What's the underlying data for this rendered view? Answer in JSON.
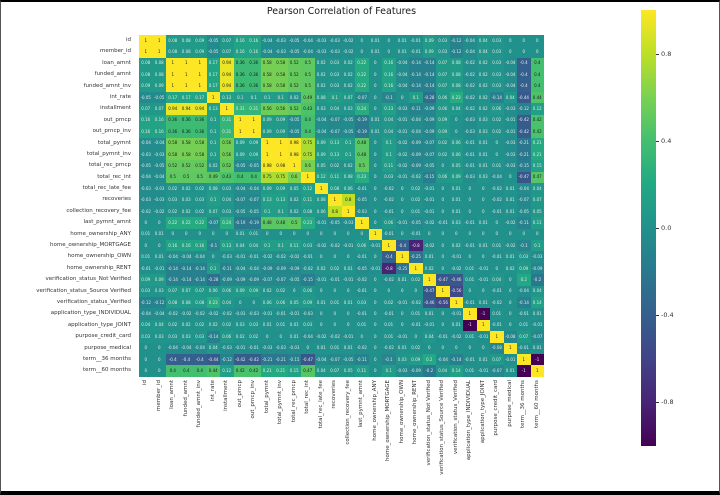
{
  "chart_data": {
    "type": "heatmap",
    "title": "Pearson Correlation of Features",
    "colormap": "viridis",
    "vmin": -1,
    "vmax": 1,
    "legend_position": "right-colorbar",
    "grid": false,
    "colorbar_ticks": [
      {
        "value": 0.8,
        "label": "0.8"
      },
      {
        "value": 0.4,
        "label": "0.4"
      },
      {
        "value": 0.0,
        "label": "0.0"
      },
      {
        "value": -0.4,
        "label": "-0.4"
      },
      {
        "value": -0.8,
        "label": "-0.8"
      }
    ],
    "labels": [
      "id",
      "member_id",
      "loan_amnt",
      "funded_amnt",
      "funded_amnt_inv",
      "int_rate",
      "installment",
      "out_prncp",
      "out_prncp_inv",
      "total_pymnt",
      "total_pymnt_inv",
      "total_rec_prncp",
      "total_rec_int",
      "total_rec_late_fee",
      "recoveries",
      "collection_recovery_fee",
      "last_pymnt_amnt",
      "home_ownership_ANY",
      "home_ownership_MORTGAGE",
      "home_ownership_OWN",
      "home_ownership_RENT",
      "verification_status_Not Verified",
      "verification_status_Source Verified",
      "verification_status_Verified",
      "application_type_INDIVIDUAL",
      "application_type_JOINT",
      "purpose_credit_card",
      "purpose_medical",
      "term__36 months",
      "term__60 months"
    ],
    "matrix": [
      [
        1.0,
        1.0,
        0.08,
        0.08,
        0.09,
        -0.05,
        0.07,
        0.16,
        0.16,
        -0.04,
        -0.03,
        -0.05,
        -0.04,
        -0.03,
        -0.03,
        -0.02,
        0.0,
        0.01,
        0.0,
        0.01,
        -0.01,
        0.09,
        0.03,
        -0.12,
        -0.04,
        0.04,
        0.03,
        0.0,
        0.0,
        0.0
      ],
      [
        1.0,
        1.0,
        0.08,
        0.08,
        0.09,
        -0.05,
        0.07,
        0.16,
        0.16,
        -0.04,
        -0.03,
        -0.05,
        -0.04,
        -0.03,
        -0.03,
        -0.02,
        0.0,
        0.01,
        0.0,
        0.01,
        -0.01,
        0.09,
        0.03,
        -0.12,
        -0.04,
        0.04,
        0.03,
        0.0,
        0.0,
        0.0
      ],
      [
        0.08,
        0.08,
        1.0,
        1.0,
        1.0,
        0.17,
        0.94,
        0.36,
        0.36,
        0.58,
        0.58,
        0.52,
        0.5,
        0.02,
        0.03,
        0.02,
        0.22,
        0.0,
        0.16,
        -0.04,
        -0.14,
        -0.14,
        0.07,
        0.08,
        -0.02,
        0.02,
        0.03,
        -0.04,
        -0.4,
        0.4
      ],
      [
        0.08,
        0.08,
        1.0,
        1.0,
        1.0,
        0.17,
        0.94,
        0.36,
        0.36,
        0.58,
        0.58,
        0.52,
        0.5,
        0.02,
        0.03,
        0.02,
        0.22,
        0.0,
        0.16,
        -0.04,
        -0.14,
        -0.14,
        0.07,
        0.08,
        -0.02,
        0.02,
        0.03,
        -0.04,
        -0.4,
        0.4
      ],
      [
        0.09,
        0.09,
        1.0,
        1.0,
        1.0,
        0.17,
        0.94,
        0.36,
        0.36,
        0.58,
        0.58,
        0.52,
        0.5,
        0.02,
        0.03,
        0.02,
        0.22,
        0.0,
        0.16,
        -0.04,
        -0.14,
        -0.14,
        0.07,
        0.08,
        -0.02,
        0.02,
        0.03,
        -0.04,
        -0.4,
        0.4
      ],
      [
        -0.05,
        -0.05,
        0.17,
        0.17,
        0.17,
        1.0,
        0.13,
        0.1,
        0.1,
        0.1,
        0.1,
        0.02,
        0.49,
        0.08,
        0.1,
        0.07,
        -0.07,
        0.0,
        -0.1,
        0.0,
        0.1,
        -0.28,
        0.06,
        0.23,
        -0.02,
        0.02,
        -0.14,
        0.04,
        -0.44,
        0.44
      ],
      [
        0.07,
        0.07,
        0.94,
        0.94,
        0.94,
        0.13,
        1.0,
        0.31,
        0.31,
        0.56,
        0.56,
        0.52,
        0.43,
        0.03,
        0.04,
        0.03,
        0.24,
        0.0,
        0.13,
        -0.03,
        -0.11,
        -0.09,
        0.06,
        0.04,
        -0.02,
        0.02,
        0.06,
        -0.03,
        -0.12,
        0.12
      ],
      [
        0.16,
        0.16,
        0.36,
        0.36,
        0.36,
        0.1,
        0.31,
        1.0,
        1.0,
        0.09,
        0.09,
        -0.05,
        0.4,
        -0.04,
        -0.07,
        -0.05,
        -0.19,
        0.01,
        0.04,
        -0.01,
        -0.04,
        -0.09,
        0.09,
        0.0,
        -0.03,
        0.03,
        0.02,
        -0.01,
        -0.42,
        0.42
      ],
      [
        0.16,
        0.16,
        0.36,
        0.36,
        0.36,
        0.1,
        0.31,
        1.0,
        1.0,
        0.09,
        0.09,
        -0.05,
        0.4,
        -0.04,
        -0.07,
        -0.05,
        -0.19,
        0.01,
        0.04,
        -0.01,
        -0.04,
        -0.09,
        0.09,
        0.0,
        -0.03,
        0.03,
        0.02,
        -0.01,
        -0.42,
        0.42
      ],
      [
        -0.04,
        -0.04,
        0.58,
        0.58,
        0.58,
        0.1,
        0.56,
        0.09,
        0.09,
        1.0,
        1.0,
        0.98,
        0.75,
        0.09,
        0.13,
        0.1,
        0.48,
        0.0,
        0.1,
        -0.02,
        -0.09,
        -0.07,
        0.02,
        0.06,
        -0.01,
        0.01,
        0.0,
        -0.03,
        -0.21,
        0.21
      ],
      [
        -0.03,
        -0.03,
        0.58,
        0.58,
        0.58,
        0.1,
        0.56,
        0.09,
        0.09,
        1.0,
        1.0,
        0.98,
        0.75,
        0.09,
        0.13,
        0.1,
        0.48,
        0.0,
        0.1,
        -0.02,
        -0.09,
        -0.07,
        0.02,
        0.06,
        -0.01,
        0.01,
        0.0,
        -0.03,
        -0.21,
        0.21
      ],
      [
        -0.05,
        -0.05,
        0.52,
        0.52,
        0.52,
        0.02,
        0.52,
        -0.05,
        -0.05,
        0.98,
        0.98,
        1.0,
        0.6,
        0.05,
        0.02,
        0.02,
        0.5,
        0.0,
        0.11,
        -0.02,
        -0.09,
        -0.05,
        0.0,
        0.05,
        -0.01,
        0.01,
        0.01,
        -0.03,
        -0.15,
        0.15
      ],
      [
        -0.04,
        -0.04,
        0.5,
        0.5,
        0.5,
        0.49,
        0.43,
        0.4,
        0.4,
        0.75,
        0.75,
        0.6,
        1.0,
        0.12,
        0.11,
        0.08,
        0.23,
        0.0,
        0.03,
        -0.01,
        -0.02,
        -0.15,
        0.06,
        0.09,
        -0.03,
        0.03,
        -0.04,
        0.0,
        -0.47,
        0.47
      ],
      [
        -0.03,
        -0.03,
        0.02,
        0.02,
        0.02,
        0.08,
        0.03,
        -0.04,
        -0.04,
        0.09,
        0.09,
        0.05,
        0.12,
        1.0,
        0.08,
        0.06,
        -0.01,
        0.0,
        -0.02,
        0.0,
        0.02,
        -0.01,
        0.0,
        0.01,
        0.0,
        0.0,
        -0.02,
        0.01,
        -0.04,
        0.04
      ],
      [
        -0.03,
        -0.03,
        0.03,
        0.03,
        0.03,
        0.1,
        0.04,
        -0.07,
        -0.07,
        0.13,
        0.13,
        0.02,
        0.11,
        0.08,
        1.0,
        0.8,
        -0.05,
        0.0,
        -0.02,
        0.0,
        0.02,
        -0.01,
        0.0,
        0.01,
        0.0,
        0.0,
        -0.02,
        0.01,
        -0.07,
        0.07
      ],
      [
        -0.02,
        -0.02,
        0.02,
        0.02,
        0.02,
        0.07,
        0.03,
        -0.05,
        -0.05,
        0.1,
        0.1,
        0.02,
        0.08,
        0.06,
        0.8,
        1.0,
        -0.03,
        0.0,
        -0.01,
        0.0,
        0.01,
        -0.01,
        0.0,
        0.01,
        0.0,
        0.0,
        -0.01,
        0.01,
        -0.05,
        0.05
      ],
      [
        0.0,
        0.0,
        0.22,
        0.22,
        0.22,
        -0.07,
        0.24,
        -0.19,
        -0.19,
        0.48,
        0.48,
        0.5,
        0.23,
        -0.01,
        -0.05,
        -0.03,
        1.0,
        0.0,
        0.06,
        -0.01,
        -0.05,
        -0.02,
        -0.01,
        0.03,
        -0.01,
        0.01,
        0.0,
        -0.02,
        -0.11,
        0.11
      ],
      [
        0.01,
        0.01,
        0.0,
        0.0,
        0.0,
        0.0,
        0.0,
        0.01,
        0.01,
        0.0,
        0.0,
        0.0,
        0.0,
        0.0,
        0.0,
        0.0,
        0.0,
        1.0,
        -0.01,
        0.0,
        -0.01,
        0.0,
        0.0,
        0.0,
        0.0,
        0.0,
        0.0,
        0.0,
        0.0,
        0.0
      ],
      [
        0.0,
        0.0,
        0.16,
        0.16,
        0.16,
        -0.1,
        0.13,
        0.04,
        0.04,
        0.1,
        0.1,
        0.11,
        0.03,
        -0.02,
        -0.02,
        -0.01,
        0.06,
        -0.01,
        1.0,
        -0.4,
        -0.8,
        -0.02,
        0.0,
        0.02,
        -0.01,
        0.01,
        0.01,
        -0.02,
        -0.1,
        0.1
      ],
      [
        0.01,
        0.01,
        -0.04,
        -0.04,
        -0.04,
        0.0,
        -0.03,
        -0.01,
        -0.01,
        -0.02,
        -0.02,
        -0.02,
        -0.01,
        0.0,
        0.0,
        0.0,
        -0.01,
        0.0,
        -0.4,
        1.0,
        -0.25,
        0.01,
        0.0,
        -0.01,
        0.0,
        0.0,
        -0.01,
        0.01,
        0.03,
        -0.03
      ],
      [
        -0.01,
        -0.01,
        -0.14,
        -0.14,
        -0.14,
        0.1,
        -0.11,
        -0.04,
        -0.04,
        -0.09,
        -0.09,
        -0.09,
        -0.02,
        0.02,
        0.02,
        0.01,
        -0.05,
        -0.01,
        -0.8,
        -0.25,
        1.0,
        0.02,
        0.0,
        -0.02,
        0.01,
        -0.01,
        0.0,
        0.02,
        0.09,
        -0.09
      ],
      [
        0.09,
        0.09,
        -0.14,
        -0.14,
        -0.14,
        -0.28,
        -0.09,
        -0.09,
        -0.09,
        -0.07,
        -0.07,
        -0.05,
        -0.15,
        -0.01,
        -0.01,
        -0.01,
        -0.02,
        0.0,
        -0.02,
        0.01,
        0.02,
        1.0,
        -0.47,
        -0.46,
        0.01,
        -0.01,
        0.04,
        0.0,
        0.2,
        -0.2
      ],
      [
        0.03,
        0.03,
        0.07,
        0.07,
        0.07,
        0.06,
        0.06,
        0.09,
        0.09,
        0.02,
        0.02,
        0.0,
        0.06,
        0.0,
        0.0,
        0.0,
        -0.01,
        0.0,
        0.0,
        0.0,
        0.0,
        -0.47,
        1.0,
        -0.56,
        0.0,
        0.0,
        -0.01,
        0.0,
        -0.04,
        0.04
      ],
      [
        -0.12,
        -0.12,
        0.08,
        0.08,
        0.08,
        0.23,
        0.04,
        0.0,
        0.0,
        0.06,
        0.06,
        0.05,
        0.09,
        0.01,
        0.01,
        0.01,
        0.03,
        0.0,
        0.02,
        -0.01,
        -0.02,
        -0.46,
        -0.56,
        1.0,
        -0.01,
        0.01,
        -0.02,
        0.0,
        -0.14,
        0.14
      ],
      [
        -0.04,
        -0.04,
        -0.02,
        -0.02,
        -0.02,
        -0.02,
        -0.02,
        -0.03,
        -0.03,
        -0.01,
        -0.01,
        -0.01,
        -0.03,
        0.0,
        0.0,
        0.0,
        -0.01,
        0.0,
        -0.01,
        0.0,
        0.01,
        0.01,
        0.0,
        -0.01,
        1.0,
        -1.0,
        0.01,
        0.0,
        -0.01,
        0.01
      ],
      [
        0.04,
        0.04,
        0.02,
        0.02,
        0.02,
        0.02,
        0.02,
        0.03,
        0.03,
        0.01,
        0.01,
        0.01,
        0.03,
        0.0,
        0.0,
        0.0,
        0.01,
        0.0,
        0.01,
        0.0,
        -0.01,
        -0.01,
        0.0,
        0.01,
        -1.0,
        1.0,
        -0.01,
        0.0,
        0.01,
        -0.01
      ],
      [
        0.03,
        0.03,
        0.03,
        0.03,
        0.03,
        -0.14,
        0.06,
        0.02,
        0.02,
        0.0,
        0.0,
        0.01,
        -0.04,
        -0.02,
        -0.02,
        -0.01,
        0.0,
        0.0,
        0.01,
        -0.01,
        0.0,
        0.04,
        -0.01,
        -0.02,
        0.01,
        -0.01,
        1.0,
        -0.08,
        0.07,
        -0.07
      ],
      [
        0.0,
        0.0,
        -0.04,
        -0.04,
        -0.04,
        0.04,
        -0.03,
        -0.01,
        -0.01,
        -0.03,
        -0.03,
        -0.03,
        0.0,
        0.01,
        0.01,
        0.01,
        -0.02,
        0.0,
        -0.02,
        0.01,
        0.02,
        0.0,
        0.0,
        0.0,
        0.0,
        0.0,
        -0.08,
        1.0,
        -0.01,
        0.01
      ],
      [
        0.0,
        0.0,
        -0.4,
        -0.4,
        -0.4,
        -0.44,
        -0.12,
        -0.42,
        -0.42,
        -0.21,
        -0.21,
        -0.15,
        -0.47,
        -0.04,
        -0.07,
        -0.05,
        -0.11,
        0.0,
        -0.1,
        0.03,
        0.09,
        0.2,
        -0.04,
        -0.14,
        -0.01,
        0.01,
        0.07,
        -0.01,
        1.0,
        -1.0
      ],
      [
        0.0,
        0.0,
        0.4,
        0.4,
        0.4,
        0.44,
        0.12,
        0.42,
        0.42,
        0.21,
        0.21,
        0.15,
        0.47,
        0.04,
        0.07,
        0.05,
        0.11,
        0.0,
        0.1,
        -0.03,
        -0.09,
        -0.2,
        0.04,
        0.14,
        0.01,
        -0.01,
        -0.07,
        0.01,
        -1.0,
        1.0
      ]
    ]
  }
}
